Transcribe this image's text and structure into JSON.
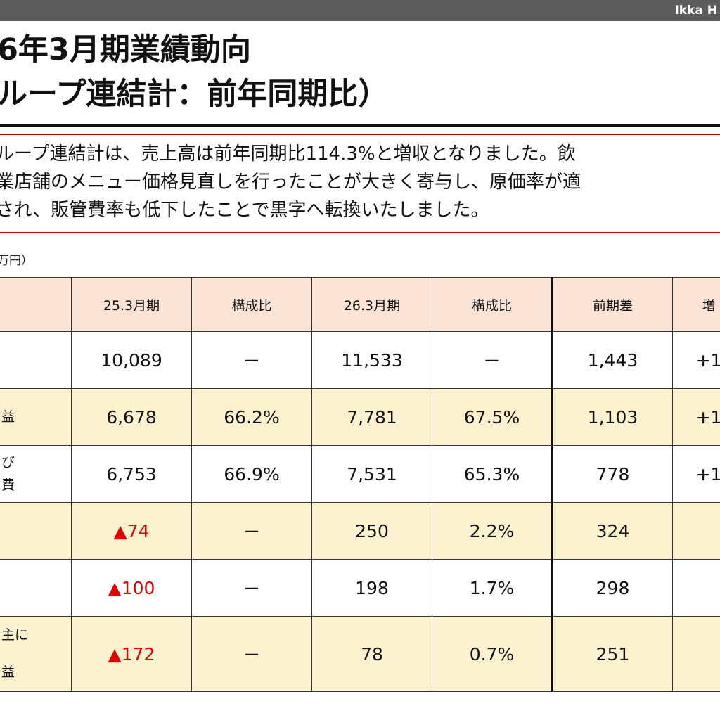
{
  "header": {
    "brand": "Ikka H"
  },
  "title": {
    "line1": "6年3月期業績動向",
    "line2": "ループ連結計：前年同期比）"
  },
  "summary": {
    "line1": "ループ連結計は、売上高は前年同期比114.3%と増収となりました。飲",
    "line2": "業店舗のメニュー価格見直しを行ったことが大きく寄与し、原価率が適",
    "line3": "され、販管費率も低下したことで黒字へ転換いたしました。"
  },
  "unit": "万円）",
  "table": {
    "headers": [
      "",
      "25.3月期",
      "構成比",
      "26.3月期",
      "構成比",
      "前期差",
      "増"
    ],
    "rows": [
      {
        "label": "",
        "label2": "",
        "cells": [
          "10,089",
          "－",
          "11,533",
          "－",
          "1,443",
          "+1"
        ]
      },
      {
        "label": "益",
        "label2": "",
        "cells": [
          "6,678",
          "66.2%",
          "7,781",
          "67.5%",
          "1,103",
          "+1"
        ]
      },
      {
        "label": "び",
        "label2": "費",
        "cells": [
          "6,753",
          "66.9%",
          "7,531",
          "65.3%",
          "778",
          "+1"
        ]
      },
      {
        "label": "",
        "label2": "",
        "cells": [
          "▲74",
          "－",
          "250",
          "2.2%",
          "324",
          ""
        ]
      },
      {
        "label": "",
        "label2": "",
        "cells": [
          "▲100",
          "－",
          "198",
          "1.7%",
          "298",
          ""
        ]
      },
      {
        "label": "主に",
        "label2": "益",
        "cells": [
          "▲172",
          "－",
          "78",
          "0.7%",
          "251",
          ""
        ]
      }
    ]
  },
  "colors": {
    "header_bar": "#5c5c5c",
    "rule_red": "#c00000",
    "table_header_bg": "#fbe4d5",
    "row_highlight_bg": "#fdf2d0",
    "negative": "#e00000"
  }
}
